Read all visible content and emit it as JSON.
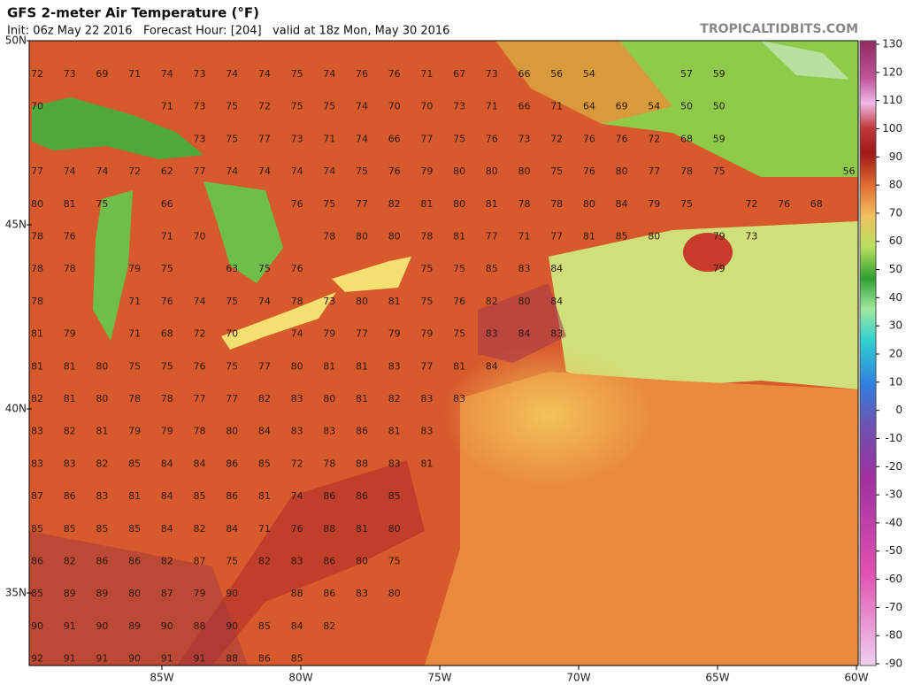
{
  "header": {
    "title": "GFS 2-meter Air Temperature (°F)",
    "subtitle": "Init: 06z May 22 2016   Forecast Hour: [204]   valid at 18z Mon, May 30 2016",
    "watermark": "TROPICALTIDBITS.COM"
  },
  "map": {
    "lat_labels": [
      "50N",
      "45N",
      "40N",
      "35N"
    ],
    "lon_labels": [
      "85W",
      "80W",
      "75W",
      "70W",
      "65W",
      "60W"
    ],
    "station_rows": [
      [
        72,
        73,
        69,
        71,
        74,
        73,
        74,
        74,
        75,
        74,
        76,
        76,
        71,
        67,
        73,
        66,
        56,
        54,
        null,
        null,
        57,
        59
      ],
      [
        70,
        null,
        null,
        null,
        71,
        73,
        75,
        72,
        75,
        75,
        74,
        70,
        70,
        73,
        71,
        66,
        71,
        64,
        69,
        54,
        50,
        50
      ],
      [
        null,
        null,
        null,
        null,
        null,
        73,
        75,
        77,
        73,
        71,
        74,
        66,
        77,
        75,
        76,
        73,
        72,
        76,
        76,
        72,
        68,
        59
      ],
      [
        77,
        74,
        74,
        72,
        62,
        77,
        74,
        74,
        74,
        74,
        75,
        76,
        79,
        80,
        80,
        80,
        75,
        76,
        80,
        77,
        78,
        75,
        null,
        null,
        null,
        56
      ],
      [
        80,
        81,
        75,
        null,
        66,
        null,
        null,
        null,
        76,
        75,
        77,
        82,
        81,
        80,
        81,
        78,
        78,
        80,
        84,
        79,
        75,
        null,
        72,
        76,
        68
      ],
      [
        78,
        76,
        null,
        null,
        71,
        70,
        null,
        null,
        null,
        78,
        80,
        80,
        78,
        81,
        77,
        71,
        77,
        81,
        85,
        80,
        null,
        79,
        73
      ],
      [
        78,
        78,
        null,
        79,
        75,
        null,
        63,
        75,
        76,
        null,
        null,
        null,
        75,
        75,
        85,
        83,
        84,
        null,
        null,
        null,
        null,
        79
      ],
      [
        78,
        null,
        null,
        71,
        76,
        74,
        75,
        74,
        78,
        73,
        80,
        81,
        75,
        76,
        82,
        80,
        84
      ],
      [
        81,
        79,
        null,
        71,
        68,
        72,
        70,
        null,
        74,
        79,
        77,
        79,
        79,
        75,
        83,
        84,
        83
      ],
      [
        81,
        81,
        80,
        75,
        75,
        76,
        75,
        77,
        80,
        81,
        81,
        83,
        77,
        81,
        84
      ],
      [
        82,
        81,
        80,
        78,
        78,
        77,
        77,
        82,
        83,
        80,
        81,
        82,
        83,
        83
      ],
      [
        83,
        82,
        81,
        79,
        79,
        78,
        80,
        84,
        83,
        83,
        86,
        81,
        83
      ],
      [
        83,
        83,
        82,
        85,
        84,
        84,
        86,
        85,
        72,
        78,
        88,
        83,
        81
      ],
      [
        87,
        86,
        83,
        81,
        84,
        85,
        86,
        81,
        74,
        86,
        86,
        85
      ],
      [
        85,
        85,
        85,
        85,
        84,
        82,
        84,
        71,
        76,
        88,
        81,
        80
      ],
      [
        86,
        82,
        86,
        86,
        82,
        87,
        75,
        82,
        83,
        86,
        80,
        75
      ],
      [
        85,
        89,
        89,
        80,
        87,
        79,
        90,
        null,
        88,
        86,
        83,
        80
      ],
      [
        90,
        91,
        90,
        89,
        90,
        88,
        90,
        85,
        84,
        82
      ],
      [
        92,
        91,
        91,
        90,
        91,
        91,
        88,
        86,
        85
      ]
    ]
  },
  "colorbar": {
    "ticks": [
      130,
      120,
      110,
      100,
      90,
      80,
      70,
      60,
      50,
      40,
      30,
      20,
      10,
      0,
      -10,
      -20,
      -30,
      -40,
      -50,
      -60,
      -70,
      -80,
      -90
    ]
  }
}
